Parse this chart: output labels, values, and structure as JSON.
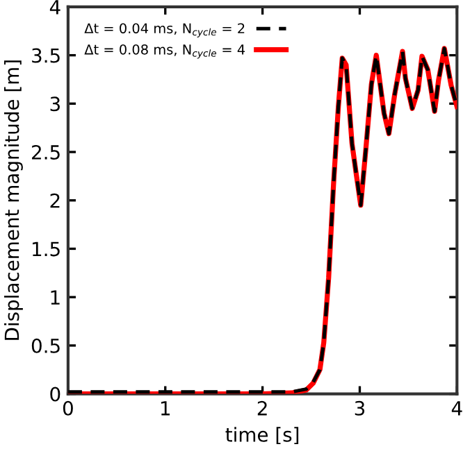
{
  "chart_data": {
    "type": "line",
    "xlabel": "time [s]",
    "ylabel": "Displacement magnitude [m]",
    "xlim": [
      0,
      4
    ],
    "ylim": [
      0,
      4
    ],
    "xticks": [
      0,
      1,
      2,
      3,
      4
    ],
    "yticks": [
      0,
      0.5,
      1,
      1.5,
      2,
      2.5,
      3,
      3.5,
      4
    ],
    "grid": false,
    "legend": "top left",
    "x": [
      0,
      0.5,
      1,
      1.5,
      2,
      2.3,
      2.45,
      2.52,
      2.59,
      2.63,
      2.68,
      2.73,
      2.78,
      2.82,
      2.86,
      2.92,
      2.96,
      3.01,
      3.06,
      3.12,
      3.17,
      3.21,
      3.25,
      3.3,
      3.36,
      3.44,
      3.47,
      3.54,
      3.6,
      3.64,
      3.7,
      3.77,
      3.81,
      3.87,
      3.94,
      4.0
    ],
    "series": [
      {
        "name": "Δt = 0.04 ms, N$_{cycle}$ = 2",
        "color": "#000000",
        "line_style": "dashed",
        "values": [
          0.02,
          0.02,
          0.02,
          0.02,
          0.02,
          0.02,
          0.05,
          0.12,
          0.25,
          0.53,
          1.2,
          2.16,
          2.97,
          3.47,
          3.4,
          2.59,
          2.3,
          1.95,
          2.5,
          3.2,
          3.5,
          3.2,
          2.9,
          2.69,
          3.1,
          3.54,
          3.26,
          2.95,
          3.14,
          3.49,
          3.35,
          2.92,
          3.24,
          3.57,
          3.19,
          2.97
        ]
      },
      {
        "name": "Δt = 0.08 ms, N$_{cycle}$ = 4",
        "color": "#ff0000",
        "line_style": "solid",
        "values": [
          0.0,
          0.0,
          0.0,
          0.0,
          0.0,
          0.01,
          0.04,
          0.11,
          0.25,
          0.53,
          1.2,
          2.16,
          2.97,
          3.47,
          3.4,
          2.59,
          2.3,
          1.95,
          2.5,
          3.2,
          3.5,
          3.2,
          2.9,
          2.69,
          3.1,
          3.54,
          3.26,
          2.95,
          3.14,
          3.49,
          3.35,
          2.92,
          3.24,
          3.57,
          3.19,
          2.97
        ]
      }
    ]
  }
}
